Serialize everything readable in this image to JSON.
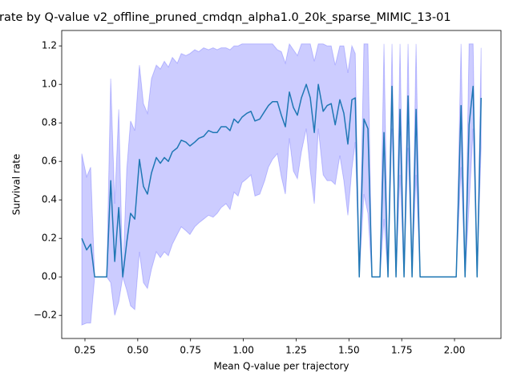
{
  "chart_data": {
    "type": "line",
    "title": "rate by Q-value v2_offline_pruned_cmdqn_alpha1.0_20k_sparse_MIMIC_13-01",
    "xlabel": "Mean Q-value per trajectory",
    "ylabel": "Survival rate",
    "xlim": [
      0.14,
      2.22
    ],
    "ylim": [
      -0.32,
      1.28
    ],
    "xticks": [
      {
        "value": 0.25,
        "label": "0.25"
      },
      {
        "value": 0.5,
        "label": "0.50"
      },
      {
        "value": 0.75,
        "label": "0.75"
      },
      {
        "value": 1.0,
        "label": "1.00"
      },
      {
        "value": 1.25,
        "label": "1.25"
      },
      {
        "value": 1.5,
        "label": "1.50"
      },
      {
        "value": 1.75,
        "label": "1.75"
      },
      {
        "value": 2.0,
        "label": "2.00"
      }
    ],
    "yticks": [
      {
        "value": -0.2,
        "label": "−0.2"
      },
      {
        "value": 0.0,
        "label": "0.0"
      },
      {
        "value": 0.2,
        "label": "0.2"
      },
      {
        "value": 0.4,
        "label": "0.4"
      },
      {
        "value": 0.6,
        "label": "0.6"
      },
      {
        "value": 0.8,
        "label": "0.8"
      },
      {
        "value": 1.0,
        "label": "1.0"
      },
      {
        "value": 1.2,
        "label": "1.2"
      }
    ],
    "x": [
      0.235,
      0.258,
      0.277,
      0.296,
      0.353,
      0.372,
      0.391,
      0.41,
      0.429,
      0.448,
      0.466,
      0.486,
      0.508,
      0.527,
      0.546,
      0.565,
      0.588,
      0.607,
      0.626,
      0.645,
      0.664,
      0.687,
      0.706,
      0.728,
      0.747,
      0.77,
      0.789,
      0.812,
      0.835,
      0.857,
      0.876,
      0.895,
      0.918,
      0.937,
      0.956,
      0.975,
      0.994,
      1.017,
      1.036,
      1.055,
      1.078,
      1.101,
      1.119,
      1.138,
      1.161,
      1.18,
      1.199,
      1.218,
      1.237,
      1.256,
      1.275,
      1.298,
      1.317,
      1.336,
      1.355,
      1.378,
      1.397,
      1.416,
      1.435,
      1.457,
      1.476,
      1.495,
      1.514,
      1.53,
      1.549,
      1.571,
      1.59,
      1.609,
      1.628,
      1.647,
      1.666,
      1.685,
      1.704,
      1.723,
      1.742,
      1.761,
      1.78,
      1.799,
      1.818,
      1.837,
      2.008,
      2.031,
      2.05,
      2.069,
      2.088,
      2.107,
      2.126
    ],
    "series": [
      {
        "color": "#1f77b4",
        "values": [
          0.2,
          0.14,
          0.17,
          0.0,
          0.0,
          0.5,
          0.08,
          0.36,
          0.0,
          0.18,
          0.33,
          0.3,
          0.61,
          0.47,
          0.43,
          0.54,
          0.62,
          0.59,
          0.62,
          0.6,
          0.65,
          0.67,
          0.71,
          0.7,
          0.68,
          0.7,
          0.72,
          0.73,
          0.76,
          0.75,
          0.75,
          0.78,
          0.78,
          0.76,
          0.82,
          0.8,
          0.83,
          0.85,
          0.86,
          0.81,
          0.82,
          0.86,
          0.89,
          0.91,
          0.91,
          0.84,
          0.78,
          0.96,
          0.88,
          0.84,
          0.93,
          1.0,
          0.93,
          0.75,
          1.0,
          0.86,
          0.89,
          0.9,
          0.79,
          0.92,
          0.85,
          0.69,
          0.92,
          0.93,
          0.0,
          0.82,
          0.77,
          0.0,
          0.0,
          0.0,
          0.75,
          0.0,
          0.99,
          0.0,
          0.87,
          0.0,
          0.94,
          0.0,
          0.87,
          0.0,
          0.0,
          0.89,
          0.0,
          0.79,
          0.99,
          0.0,
          0.93
        ]
      }
    ],
    "band": {
      "color": "#0000ff",
      "upper": [
        0.64,
        0.52,
        0.57,
        0.0,
        0.0,
        1.03,
        0.38,
        0.87,
        0.0,
        0.56,
        0.81,
        0.76,
        1.1,
        0.9,
        0.85,
        1.03,
        1.1,
        1.08,
        1.12,
        1.09,
        1.14,
        1.11,
        1.16,
        1.15,
        1.16,
        1.18,
        1.17,
        1.19,
        1.18,
        1.19,
        1.18,
        1.19,
        1.19,
        1.18,
        1.2,
        1.2,
        1.21,
        1.21,
        1.21,
        1.21,
        1.21,
        1.21,
        1.21,
        1.21,
        1.18,
        1.17,
        1.11,
        1.21,
        1.18,
        1.15,
        1.21,
        1.21,
        1.21,
        1.12,
        1.21,
        1.21,
        1.2,
        1.2,
        1.1,
        1.2,
        1.2,
        1.06,
        1.2,
        1.16,
        0.0,
        1.21,
        1.21,
        0.0,
        0.0,
        0.0,
        1.21,
        0.0,
        1.21,
        0.0,
        1.21,
        0.0,
        1.21,
        0.0,
        1.21,
        0.0,
        0.0,
        1.21,
        0.0,
        1.21,
        1.21,
        0.0,
        1.19
      ],
      "lower": [
        -0.25,
        -0.24,
        -0.24,
        0.0,
        0.0,
        -0.03,
        -0.2,
        -0.13,
        0.0,
        -0.07,
        -0.15,
        -0.17,
        0.13,
        -0.03,
        -0.06,
        0.04,
        0.13,
        0.1,
        0.13,
        0.11,
        0.17,
        0.22,
        0.26,
        0.24,
        0.22,
        0.26,
        0.28,
        0.3,
        0.32,
        0.31,
        0.33,
        0.36,
        0.38,
        0.35,
        0.44,
        0.42,
        0.49,
        0.51,
        0.53,
        0.42,
        0.43,
        0.5,
        0.57,
        0.61,
        0.64,
        0.52,
        0.43,
        0.72,
        0.55,
        0.51,
        0.65,
        0.77,
        0.55,
        0.38,
        0.77,
        0.53,
        0.5,
        0.5,
        0.48,
        0.63,
        0.5,
        0.32,
        0.56,
        0.7,
        0.0,
        0.43,
        0.33,
        0.0,
        0.0,
        0.0,
        0.3,
        0.0,
        0.77,
        0.0,
        0.53,
        0.0,
        0.67,
        0.0,
        0.53,
        0.0,
        0.0,
        0.57,
        0.0,
        0.37,
        0.77,
        0.0,
        0.67
      ]
    }
  }
}
